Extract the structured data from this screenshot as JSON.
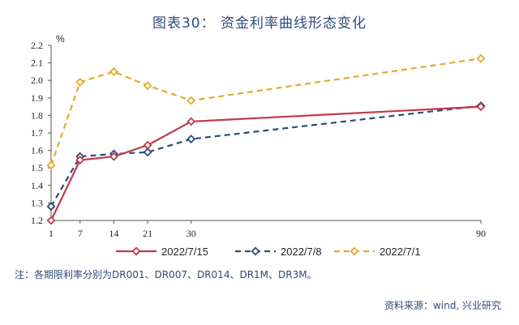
{
  "title": "图表30：  资金利率曲线形态变化",
  "note": "注：各期限利率分别为DR001、DR007、DR014、DR1M、DR3M。",
  "source": "资料来源：wind, 兴业研究",
  "chart_data": {
    "type": "line",
    "unit": "%",
    "x": [
      1,
      7,
      14,
      21,
      30,
      90
    ],
    "x_tick_labels": [
      "1",
      "7",
      "14",
      "21",
      "30",
      "90"
    ],
    "ylim": [
      1.2,
      2.2
    ],
    "y_ticks": [
      1.2,
      1.3,
      1.4,
      1.5,
      1.6,
      1.7,
      1.8,
      1.9,
      2.0,
      2.1,
      2.2
    ],
    "y_tick_labels": [
      "1.2",
      "1.3",
      "1.4",
      "1.5",
      "1.6",
      "1.7",
      "1.8",
      "1.9",
      "2.0",
      "2.1",
      "2.2"
    ],
    "grid": false,
    "legend_position": "bottom",
    "series": [
      {
        "name": "2022/7/15",
        "values": [
          1.2,
          1.545,
          1.565,
          1.63,
          1.765,
          1.85
        ],
        "color": "#c0394b",
        "dash": "solid",
        "marker": "diamond"
      },
      {
        "name": "2022/7/8",
        "values": [
          1.28,
          1.565,
          1.58,
          1.59,
          1.665,
          1.855
        ],
        "color": "#2e4a7a",
        "dash": "dashed",
        "marker": "diamond"
      },
      {
        "name": "2022/7/1",
        "values": [
          1.515,
          1.99,
          2.05,
          1.97,
          1.885,
          2.125
        ],
        "color": "#e6a92a",
        "dash": "dashed",
        "marker": "diamond"
      }
    ]
  }
}
